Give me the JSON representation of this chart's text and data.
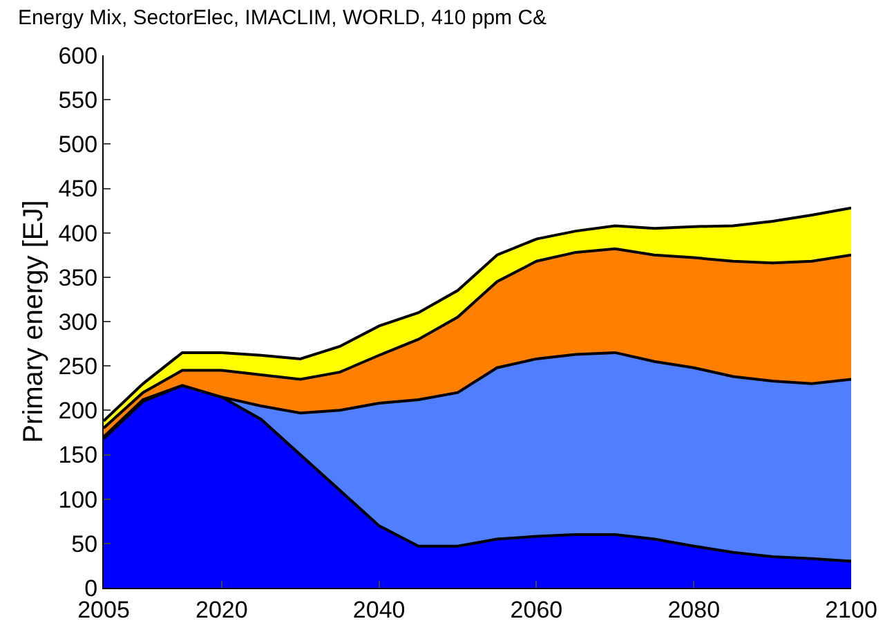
{
  "chart_data": {
    "type": "area",
    "stacked": true,
    "title": "Energy Mix, SectorElec, IMACLIM, WORLD, 410 ppm C&",
    "ylabel": "Primary energy [EJ]",
    "x": [
      2005,
      2010,
      2015,
      2020,
      2025,
      2030,
      2035,
      2040,
      2045,
      2050,
      2055,
      2060,
      2065,
      2070,
      2075,
      2080,
      2085,
      2090,
      2095,
      2100
    ],
    "series": [
      {
        "color": "#0000ff",
        "values": [
          168,
          210,
          228,
          215,
          190,
          150,
          110,
          70,
          47,
          47,
          55,
          58,
          60,
          60,
          55,
          47,
          40,
          35,
          33,
          30
        ]
      },
      {
        "color": "#4f7fff",
        "values": [
          2,
          2,
          0,
          0,
          15,
          47,
          90,
          138,
          165,
          173,
          193,
          200,
          203,
          205,
          200,
          201,
          198,
          198,
          197,
          205
        ]
      },
      {
        "color": "#ff8000",
        "values": [
          10,
          8,
          17,
          30,
          35,
          38,
          43,
          54,
          68,
          85,
          97,
          110,
          115,
          117,
          120,
          124,
          130,
          133,
          138,
          140
        ]
      },
      {
        "color": "#ffff00",
        "values": [
          8,
          10,
          20,
          20,
          22,
          23,
          29,
          33,
          30,
          30,
          30,
          25,
          24,
          26,
          30,
          35,
          40,
          47,
          52,
          53
        ]
      }
    ],
    "xlim": [
      2005,
      2100
    ],
    "xticks": [
      2005,
      2020,
      2040,
      2060,
      2080,
      2100
    ],
    "ylim": [
      0,
      600
    ],
    "yticks": [
      0,
      50,
      100,
      150,
      200,
      250,
      300,
      350,
      400,
      450,
      500,
      550,
      600
    ]
  }
}
